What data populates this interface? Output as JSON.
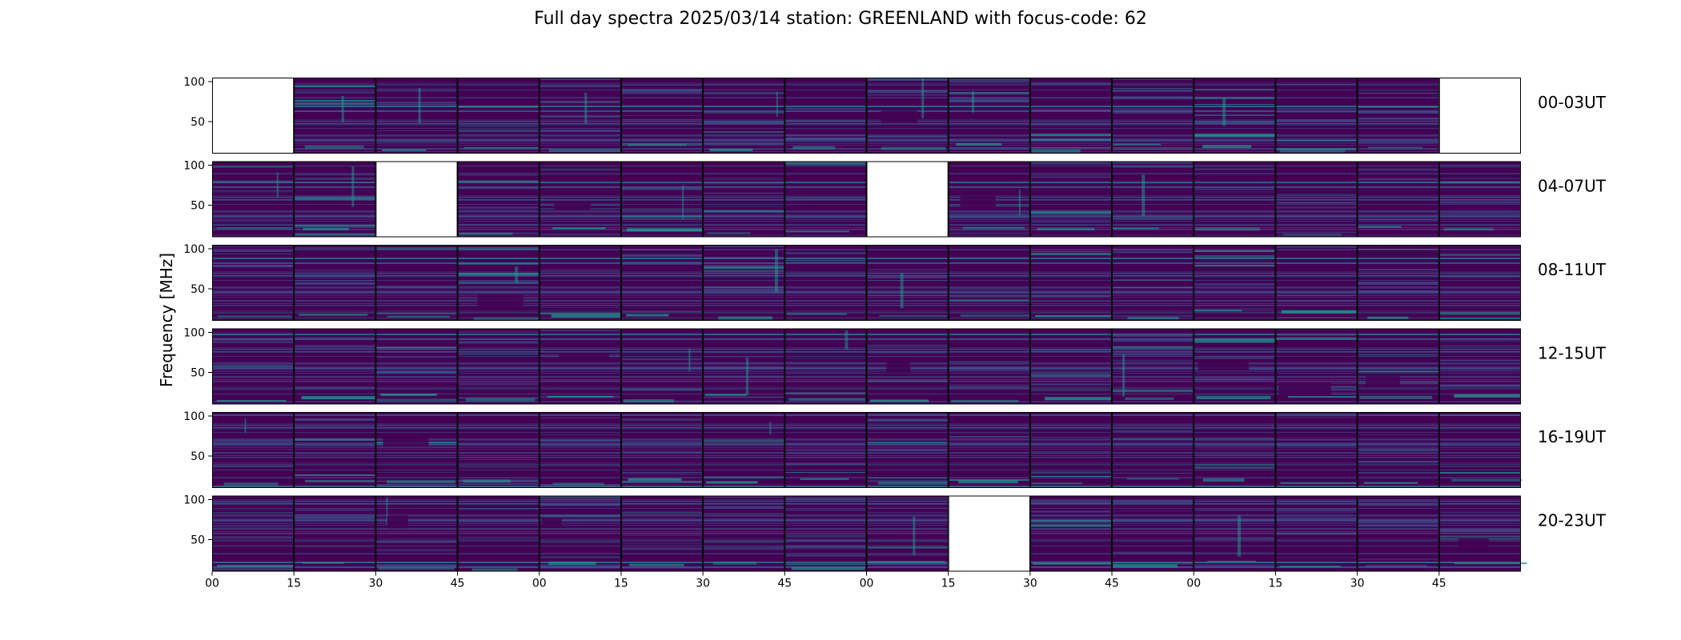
{
  "chart_data": {
    "type": "heatmap",
    "title": "Full day spectra 2025/03/14 station: GREENLAND with focus-code: 62",
    "ylabel": "Frequency [MHz]",
    "y_ticks": [
      100,
      50
    ],
    "x_ticks": [
      "00",
      "15",
      "30",
      "45",
      "00",
      "15",
      "30",
      "45",
      "00",
      "15",
      "30",
      "45",
      "00",
      "15",
      "30",
      "45"
    ],
    "panels_per_row": 16,
    "colormap": "viridis",
    "rows": [
      {
        "label": "00-03UT",
        "missing": [
          0,
          15
        ]
      },
      {
        "label": "04-07UT",
        "missing": [
          2,
          8
        ]
      },
      {
        "label": "08-11UT",
        "missing": []
      },
      {
        "label": "12-15UT",
        "missing": []
      },
      {
        "label": "16-19UT",
        "missing": []
      },
      {
        "label": "20-23UT",
        "missing": [
          9
        ]
      }
    ]
  },
  "colors": {
    "background": "#440154",
    "mid": "#3b528b",
    "high": "#21918c",
    "bright": "#5ec962",
    "missing": "#ffffff"
  }
}
